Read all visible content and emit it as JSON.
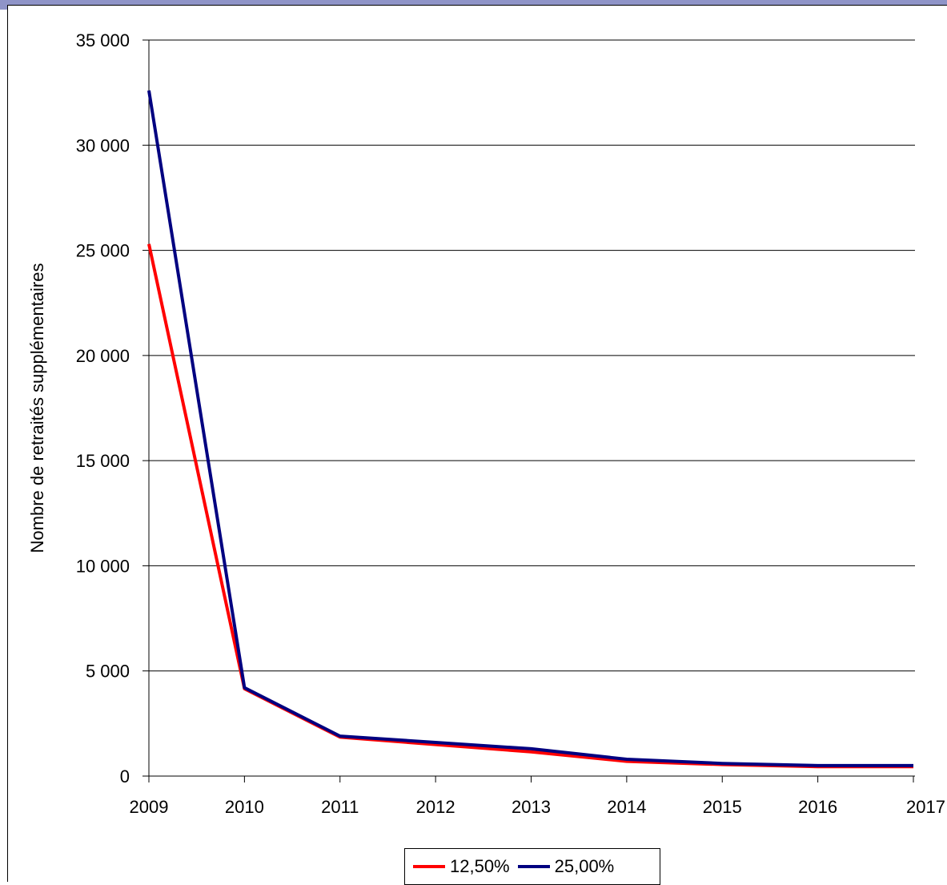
{
  "chart_data": {
    "type": "line",
    "title": "",
    "xlabel": "",
    "ylabel": "Nombre de retraités supplémentaires",
    "x": [
      "2009",
      "2010",
      "2011",
      "2012",
      "2013",
      "2014",
      "2015",
      "2016",
      "2017"
    ],
    "ylim": [
      0,
      35000
    ],
    "yticks": [
      0,
      5000,
      10000,
      15000,
      20000,
      25000,
      30000,
      35000
    ],
    "ytick_labels": [
      "0",
      "5 000",
      "10 000",
      "15 000",
      "20 000",
      "25 000",
      "30 000",
      "35 000"
    ],
    "grid": true,
    "legend_position": "bottom",
    "series": [
      {
        "name": "12,50%",
        "color": "#ff0000",
        "values": [
          25300,
          4150,
          1850,
          1500,
          1150,
          700,
          550,
          450,
          450
        ]
      },
      {
        "name": "25,00%",
        "color": "#000080",
        "values": [
          32600,
          4200,
          1900,
          1600,
          1300,
          800,
          600,
          500,
          500
        ]
      }
    ]
  }
}
